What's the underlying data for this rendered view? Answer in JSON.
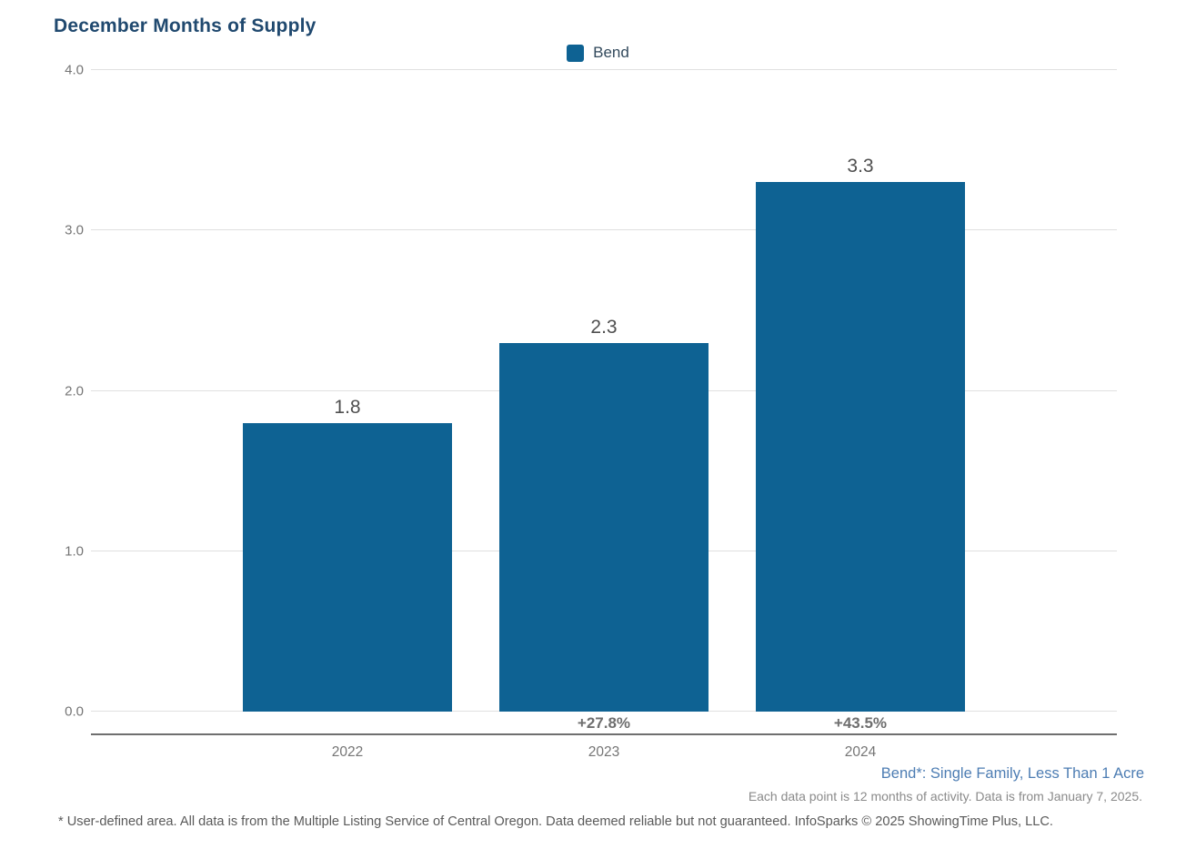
{
  "title": "December Months of Supply",
  "legend": {
    "label": "Bend",
    "swatch_color": "#0e6293"
  },
  "colors": {
    "bar": "#0e6293",
    "title": "#20496f",
    "footnote_series": "#4d7db3",
    "gridline": "#e0e0e0",
    "axis_line": "#6f6f6f"
  },
  "chart_data": {
    "type": "bar",
    "title": "December Months of Supply",
    "categories": [
      "2022",
      "2023",
      "2024"
    ],
    "series": [
      {
        "name": "Bend",
        "values": [
          1.8,
          2.3,
          3.3
        ]
      }
    ],
    "value_labels": [
      "1.8",
      "2.3",
      "3.3"
    ],
    "pct_change_labels": [
      "",
      "+27.8%",
      "+43.5%"
    ],
    "xlabel": "",
    "ylabel": "",
    "ylim": [
      0,
      4.0
    ],
    "yticks": [
      0.0,
      1.0,
      2.0,
      3.0,
      4.0
    ],
    "ytick_labels": [
      "0.0",
      "1.0",
      "2.0",
      "3.0",
      "4.0"
    ],
    "grid": true,
    "legend_position": "top-center"
  },
  "footnotes": {
    "series_definition": "Bend*: Single Family, Less Than 1 Acre",
    "data_note": "Each data point is 12 months of activity. Data is from January 7, 2025.",
    "disclaimer": "* User-defined area. All data is from the Multiple Listing Service of Central Oregon. Data deemed reliable but not guaranteed. InfoSparks © 2025 ShowingTime Plus, LLC."
  }
}
